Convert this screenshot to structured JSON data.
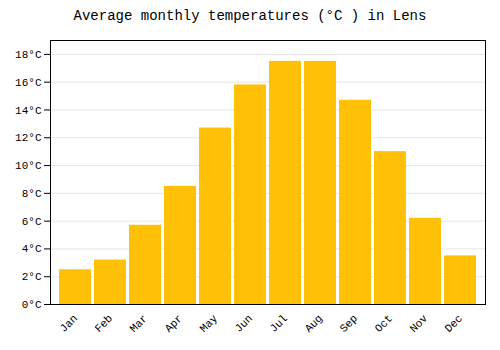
{
  "chart_data": {
    "type": "bar",
    "title": "Average monthly temperatures (°C ) in Lens",
    "categories": [
      "Jan",
      "Feb",
      "Mar",
      "Apr",
      "May",
      "Jun",
      "Jul",
      "Aug",
      "Sep",
      "Oct",
      "Nov",
      "Dec"
    ],
    "values": [
      2.5,
      3.2,
      5.7,
      8.5,
      12.7,
      15.8,
      17.5,
      17.5,
      14.7,
      11.0,
      6.2,
      3.5
    ],
    "color": "#FFC107",
    "ylim": [
      0,
      19
    ],
    "yticks": [
      {
        "value": 0,
        "label": "0°C"
      },
      {
        "value": 2,
        "label": "2°C"
      },
      {
        "value": 4,
        "label": "4°C"
      },
      {
        "value": 6,
        "label": "6°C"
      },
      {
        "value": 8,
        "label": "8°C"
      },
      {
        "value": 10,
        "label": "10°C"
      },
      {
        "value": 12,
        "label": "12°C"
      },
      {
        "value": 14,
        "label": "14°C"
      },
      {
        "value": 16,
        "label": "16°C"
      },
      {
        "value": 18,
        "label": "18°C"
      }
    ],
    "grid": true
  }
}
